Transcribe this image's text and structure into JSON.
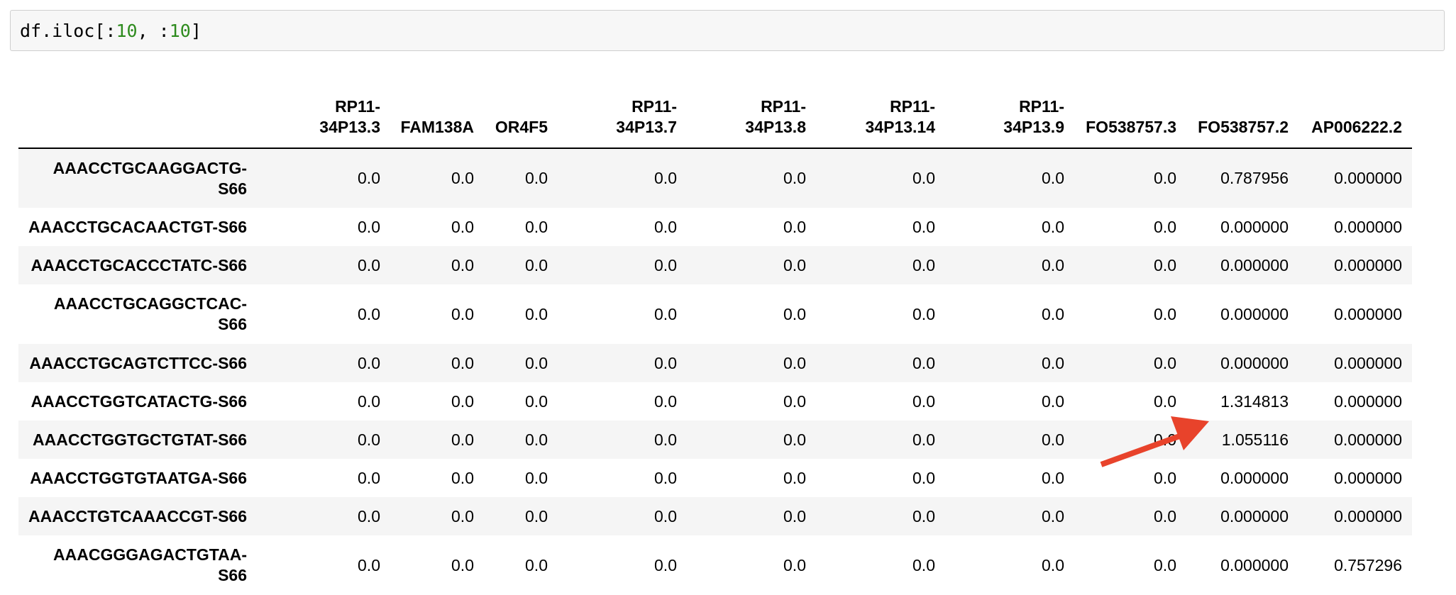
{
  "code": {
    "prefix": "df.iloc[:",
    "n1": "10",
    "mid": ", :",
    "n2": "10",
    "suffix": "]"
  },
  "table": {
    "index_header": "",
    "columns": [
      {
        "l1": "RP11-",
        "l2": "34P13.3"
      },
      {
        "l1": "FAM138A",
        "l2": ""
      },
      {
        "l1": "OR4F5",
        "l2": ""
      },
      {
        "l1": "RP11-",
        "l2": "34P13.7"
      },
      {
        "l1": "RP11-",
        "l2": "34P13.8"
      },
      {
        "l1": "RP11-",
        "l2": "34P13.14"
      },
      {
        "l1": "RP11-",
        "l2": "34P13.9"
      },
      {
        "l1": "FO538757.3",
        "l2": ""
      },
      {
        "l1": "FO538757.2",
        "l2": ""
      },
      {
        "l1": "AP006222.2",
        "l2": ""
      }
    ],
    "rows": [
      {
        "i1": "AAACCTGCAAGGACTG-",
        "i2": "S66",
        "v": [
          "0.0",
          "0.0",
          "0.0",
          "0.0",
          "0.0",
          "0.0",
          "0.0",
          "0.0",
          "0.787956",
          "0.000000"
        ]
      },
      {
        "i1": "AAACCTGCACAACTGT-S66",
        "i2": "",
        "v": [
          "0.0",
          "0.0",
          "0.0",
          "0.0",
          "0.0",
          "0.0",
          "0.0",
          "0.0",
          "0.000000",
          "0.000000"
        ]
      },
      {
        "i1": "AAACCTGCACCCTATC-S66",
        "i2": "",
        "v": [
          "0.0",
          "0.0",
          "0.0",
          "0.0",
          "0.0",
          "0.0",
          "0.0",
          "0.0",
          "0.000000",
          "0.000000"
        ]
      },
      {
        "i1": "AAACCTGCAGGCTCAC-",
        "i2": "S66",
        "v": [
          "0.0",
          "0.0",
          "0.0",
          "0.0",
          "0.0",
          "0.0",
          "0.0",
          "0.0",
          "0.000000",
          "0.000000"
        ]
      },
      {
        "i1": "AAACCTGCAGTCTTCC-S66",
        "i2": "",
        "v": [
          "0.0",
          "0.0",
          "0.0",
          "0.0",
          "0.0",
          "0.0",
          "0.0",
          "0.0",
          "0.000000",
          "0.000000"
        ]
      },
      {
        "i1": "AAACCTGGTCATACTG-S66",
        "i2": "",
        "v": [
          "0.0",
          "0.0",
          "0.0",
          "0.0",
          "0.0",
          "0.0",
          "0.0",
          "0.0",
          "1.314813",
          "0.000000"
        ]
      },
      {
        "i1": "AAACCTGGTGCTGTAT-S66",
        "i2": "",
        "v": [
          "0.0",
          "0.0",
          "0.0",
          "0.0",
          "0.0",
          "0.0",
          "0.0",
          "0.0",
          "1.055116",
          "0.000000"
        ]
      },
      {
        "i1": "AAACCTGGTGTAATGA-S66",
        "i2": "",
        "v": [
          "0.0",
          "0.0",
          "0.0",
          "0.0",
          "0.0",
          "0.0",
          "0.0",
          "0.0",
          "0.000000",
          "0.000000"
        ]
      },
      {
        "i1": "AAACCTGTCAAACCGT-S66",
        "i2": "",
        "v": [
          "0.0",
          "0.0",
          "0.0",
          "0.0",
          "0.0",
          "0.0",
          "0.0",
          "0.0",
          "0.000000",
          "0.000000"
        ]
      },
      {
        "i1": "AAACGGGAGACTGTAA-",
        "i2": "S66",
        "v": [
          "0.0",
          "0.0",
          "0.0",
          "0.0",
          "0.0",
          "0.0",
          "0.0",
          "0.0",
          "0.000000",
          "0.757296"
        ]
      }
    ]
  },
  "annotation": {
    "arrow_color": "#e8432b",
    "icon": "arrow-annotation-icon"
  }
}
